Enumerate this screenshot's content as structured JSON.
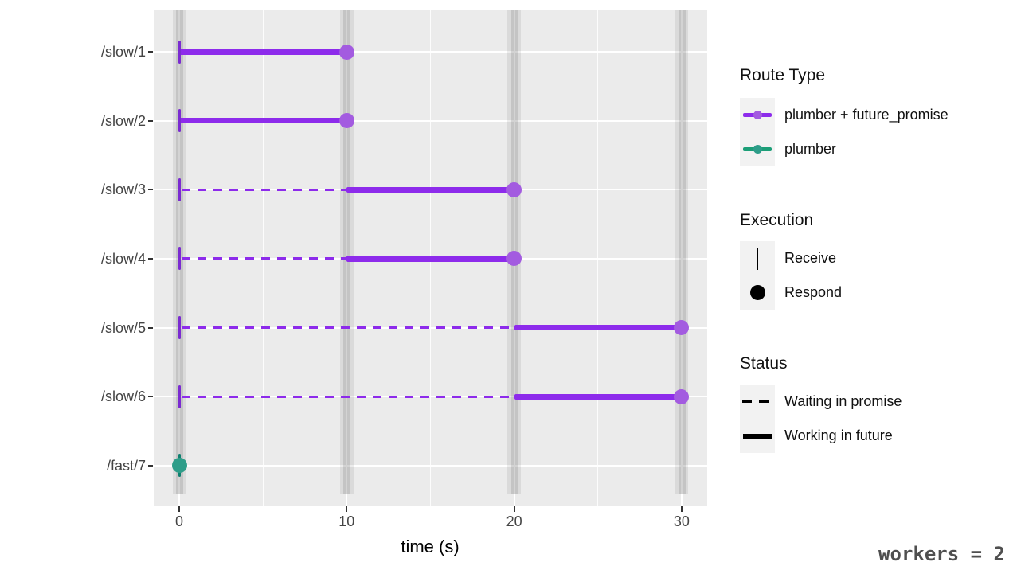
{
  "chart_data": {
    "type": "timeline",
    "title": "",
    "xlabel": "time (s)",
    "x_ticks": [
      0,
      10,
      20,
      30
    ],
    "x_minor_ticks": [
      5,
      15,
      25
    ],
    "xlim": [
      -1.5,
      31.5
    ],
    "categories": [
      "/slow/1",
      "/slow/2",
      "/slow/3",
      "/slow/4",
      "/slow/5",
      "/slow/6",
      "/fast/7"
    ],
    "worker_bands_at": [
      0,
      10,
      20,
      30
    ],
    "rows": [
      {
        "route": "/slow/1",
        "route_type": "plumber + future_promise",
        "receive": 0,
        "waiting": null,
        "working": [
          0,
          10
        ],
        "respond": 10
      },
      {
        "route": "/slow/2",
        "route_type": "plumber + future_promise",
        "receive": 0,
        "waiting": null,
        "working": [
          0,
          10
        ],
        "respond": 10
      },
      {
        "route": "/slow/3",
        "route_type": "plumber + future_promise",
        "receive": 0,
        "waiting": [
          0,
          10
        ],
        "working": [
          10,
          20
        ],
        "respond": 20
      },
      {
        "route": "/slow/4",
        "route_type": "plumber + future_promise",
        "receive": 0,
        "waiting": [
          0,
          10
        ],
        "working": [
          10,
          20
        ],
        "respond": 20
      },
      {
        "route": "/slow/5",
        "route_type": "plumber + future_promise",
        "receive": 0,
        "waiting": [
          0,
          20
        ],
        "working": [
          20,
          30
        ],
        "respond": 30
      },
      {
        "route": "/slow/6",
        "route_type": "plumber + future_promise",
        "receive": 0,
        "waiting": [
          0,
          20
        ],
        "working": [
          20,
          30
        ],
        "respond": 30
      },
      {
        "route": "/fast/7",
        "route_type": "plumber",
        "receive": 0,
        "waiting": null,
        "working": null,
        "respond": 0
      }
    ],
    "colors": {
      "plumber_future_promise": "#8D2BEB",
      "plumber_future_promise_tick": "#7B2BD1",
      "plumber_future_promise_point": "#A35BE0",
      "plumber": "#1B9E77",
      "plumber_tick": "#0F8070",
      "plumber_point": "#2E9D89"
    }
  },
  "legend": {
    "route_type": {
      "title": "Route Type",
      "items": [
        {
          "label": "plumber + future_promise",
          "color_key": "plumber_future_promise"
        },
        {
          "label": "plumber",
          "color_key": "plumber"
        }
      ]
    },
    "execution": {
      "title": "Execution",
      "items": [
        {
          "label": "Receive",
          "glyph": "vertical-line"
        },
        {
          "label": "Respond",
          "glyph": "circle"
        }
      ]
    },
    "status": {
      "title": "Status",
      "items": [
        {
          "label": "Waiting in promise",
          "glyph": "dashed-line"
        },
        {
          "label": "Working in future",
          "glyph": "solid-line"
        }
      ]
    }
  },
  "annotation": {
    "workers_label": "workers = 2"
  }
}
